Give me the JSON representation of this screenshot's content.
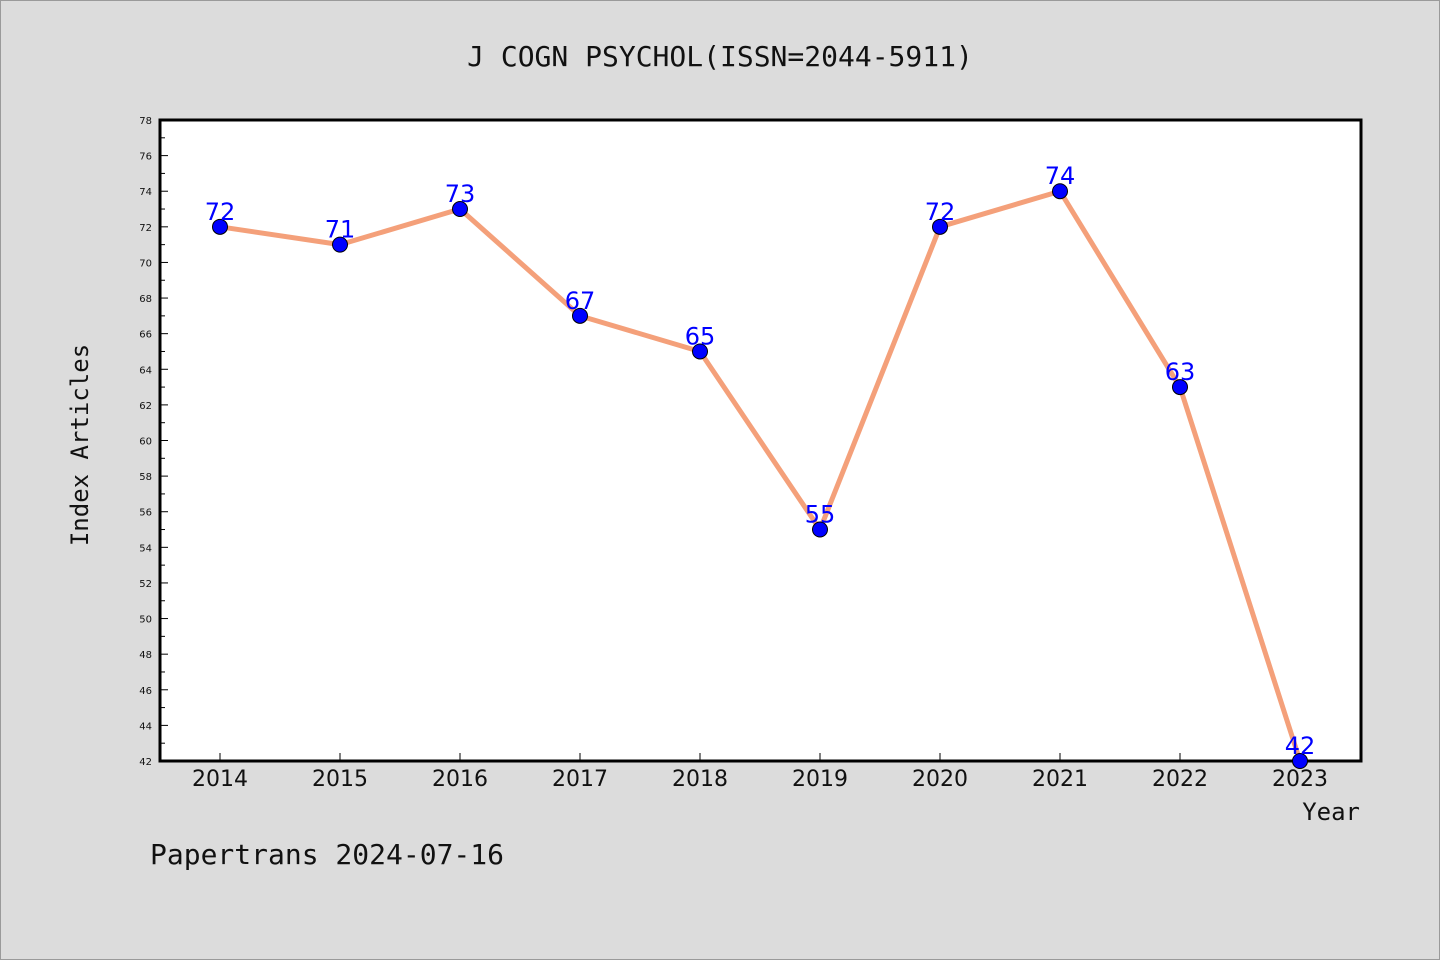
{
  "chart_data": {
    "type": "line",
    "title": "J COGN PSYCHOL(ISSN=2044-5911)",
    "xlabel": "Year",
    "ylabel": "Index Articles",
    "categories": [
      "2014",
      "2015",
      "2016",
      "2017",
      "2018",
      "2019",
      "2020",
      "2021",
      "2022",
      "2023"
    ],
    "series": [
      {
        "values": [
          72,
          71,
          73,
          67,
          65,
          55,
          72,
          74,
          63,
          42
        ]
      }
    ],
    "ylim": [
      42,
      78
    ],
    "yticks": [
      "42",
      "44",
      "46",
      "48",
      "50",
      "52",
      "54",
      "56",
      "58",
      "60",
      "62",
      "64",
      "66",
      "68",
      "70",
      "72",
      "74",
      "76",
      "78"
    ],
    "grid": false,
    "data_labels": true,
    "colors": {
      "line": "#f4a07a",
      "marker": "#0000ff",
      "label": "#0000ff",
      "background": "#dcdcdc",
      "plot_bg": "#ffffff"
    }
  },
  "footer": "Papertrans 2024-07-16"
}
